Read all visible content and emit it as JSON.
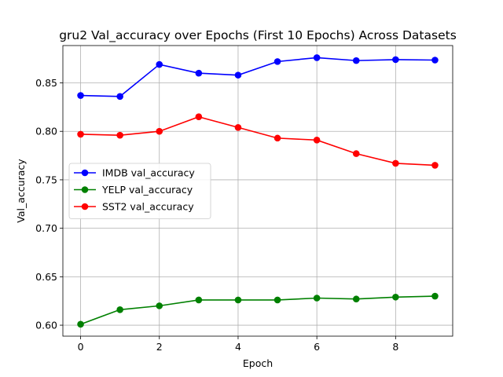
{
  "chart_data": {
    "type": "line",
    "title": "gru2 Val_accuracy over Epochs (First 10 Epochs) Across Datasets",
    "xlabel": "Epoch",
    "ylabel": "Val_accuracy",
    "x": [
      0,
      1,
      2,
      3,
      4,
      5,
      6,
      7,
      8,
      9
    ],
    "xlim": [
      -0.45,
      9.45
    ],
    "ylim": [
      0.5887,
      0.8885
    ],
    "xticks": [
      0,
      2,
      4,
      6,
      8
    ],
    "xtick_labels": [
      "0",
      "2",
      "4",
      "6",
      "8"
    ],
    "yticks": [
      0.6,
      0.65,
      0.7,
      0.75,
      0.8,
      0.85
    ],
    "ytick_labels": [
      "0.60",
      "0.65",
      "0.70",
      "0.75",
      "0.80",
      "0.85"
    ],
    "grid": true,
    "legend_position": "center-left",
    "series": [
      {
        "name": "IMDB val_accuracy",
        "color": "#0000ff",
        "values": [
          0.837,
          0.836,
          0.869,
          0.86,
          0.858,
          0.872,
          0.876,
          0.873,
          0.874,
          0.8735
        ]
      },
      {
        "name": "YELP val_accuracy",
        "color": "#008000",
        "values": [
          0.601,
          0.616,
          0.62,
          0.626,
          0.626,
          0.626,
          0.628,
          0.627,
          0.629,
          0.63
        ]
      },
      {
        "name": "SST2 val_accuracy",
        "color": "#ff0000",
        "values": [
          0.797,
          0.796,
          0.8,
          0.815,
          0.804,
          0.793,
          0.791,
          0.777,
          0.767,
          0.765
        ]
      }
    ]
  }
}
